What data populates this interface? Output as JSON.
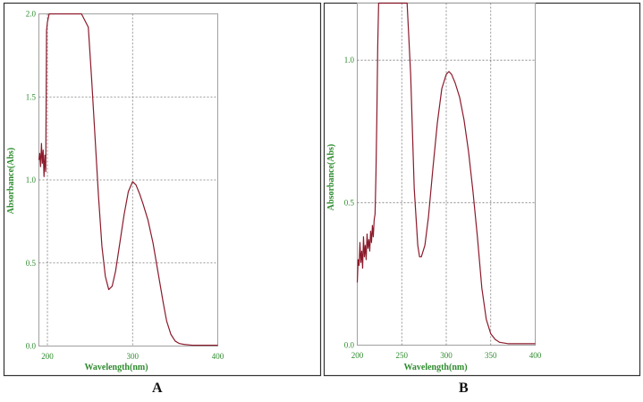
{
  "colors": {
    "curve": "#8b1a2b",
    "axis_text": "#2e8b2e",
    "grid": "#7a7a7a",
    "plot_border": "#a0a0a0",
    "panel_border": "#333333"
  },
  "captions": {
    "a": "A",
    "b": "B"
  },
  "chart_data": [
    {
      "type": "line",
      "panel": "A",
      "xlabel": "Wavelength(nm)",
      "ylabel": "Absorbance(Abs)",
      "xlim": [
        190,
        400
      ],
      "ylim": [
        0,
        2.0
      ],
      "x_ticks": [
        200,
        300,
        400
      ],
      "x_tick_labels": [
        "200",
        "300",
        "400"
      ],
      "y_ticks": [
        0,
        0.5,
        1.0,
        1.5,
        2.0
      ],
      "y_tick_labels": [
        "0.0",
        "0.5",
        "1.0",
        "1.5",
        "2.0"
      ],
      "grid": true,
      "series": [
        {
          "x": [
            190,
            191,
            192,
            193,
            194,
            195,
            196,
            197,
            198,
            199,
            200,
            202,
            205,
            210,
            220,
            230,
            240,
            248,
            252,
            256,
            260,
            264,
            268,
            272,
            276,
            280,
            285,
            290,
            295,
            300,
            304,
            308,
            312,
            318,
            324,
            330,
            336,
            340,
            345,
            350,
            355,
            360,
            370,
            380,
            400
          ],
          "y": [
            1.12,
            1.16,
            1.08,
            1.22,
            1.1,
            1.18,
            1.02,
            1.15,
            1.05,
            1.9,
            1.95,
            2.0,
            2.0,
            2.0,
            2.0,
            2.0,
            2.0,
            1.92,
            1.6,
            1.25,
            0.9,
            0.6,
            0.42,
            0.34,
            0.36,
            0.45,
            0.62,
            0.79,
            0.93,
            0.99,
            0.97,
            0.92,
            0.86,
            0.76,
            0.62,
            0.44,
            0.26,
            0.15,
            0.07,
            0.03,
            0.015,
            0.01,
            0.005,
            0.005,
            0.005
          ]
        }
      ]
    },
    {
      "type": "line",
      "panel": "B",
      "xlabel": "Wavelength(nm)",
      "ylabel": "Absorbance(Abs)",
      "xlim": [
        200,
        400
      ],
      "ylim": [
        0,
        1.2
      ],
      "x_ticks": [
        200,
        250,
        300,
        350,
        400
      ],
      "x_tick_labels": [
        "200",
        "250",
        "300",
        "350",
        "400"
      ],
      "y_ticks": [
        0,
        0.5,
        1.0
      ],
      "y_tick_labels": [
        "0.0",
        "0.5",
        "1.0"
      ],
      "grid": true,
      "series": [
        {
          "x": [
            200,
            201,
            202,
            203,
            204,
            205,
            206,
            207,
            208,
            209,
            210,
            211,
            212,
            213,
            214,
            215,
            216,
            217,
            218,
            219,
            220,
            221,
            222,
            223,
            224,
            225,
            228,
            232,
            236,
            240,
            244,
            248,
            252,
            256,
            260,
            264,
            268,
            270,
            272,
            276,
            280,
            285,
            290,
            295,
            300,
            303,
            306,
            310,
            315,
            320,
            325,
            330,
            335,
            340,
            345,
            350,
            355,
            360,
            370,
            380,
            400
          ],
          "y": [
            0.22,
            0.3,
            0.28,
            0.36,
            0.29,
            0.33,
            0.27,
            0.38,
            0.31,
            0.35,
            0.3,
            0.39,
            0.34,
            0.37,
            0.33,
            0.4,
            0.36,
            0.42,
            0.38,
            0.44,
            0.46,
            0.6,
            0.8,
            1.05,
            1.2,
            1.2,
            1.2,
            1.2,
            1.2,
            1.2,
            1.2,
            1.2,
            1.2,
            1.2,
            0.95,
            0.55,
            0.35,
            0.31,
            0.31,
            0.35,
            0.45,
            0.62,
            0.78,
            0.9,
            0.95,
            0.96,
            0.95,
            0.92,
            0.87,
            0.79,
            0.68,
            0.54,
            0.38,
            0.2,
            0.09,
            0.04,
            0.02,
            0.01,
            0.005,
            0.005,
            0.005
          ]
        }
      ]
    }
  ]
}
